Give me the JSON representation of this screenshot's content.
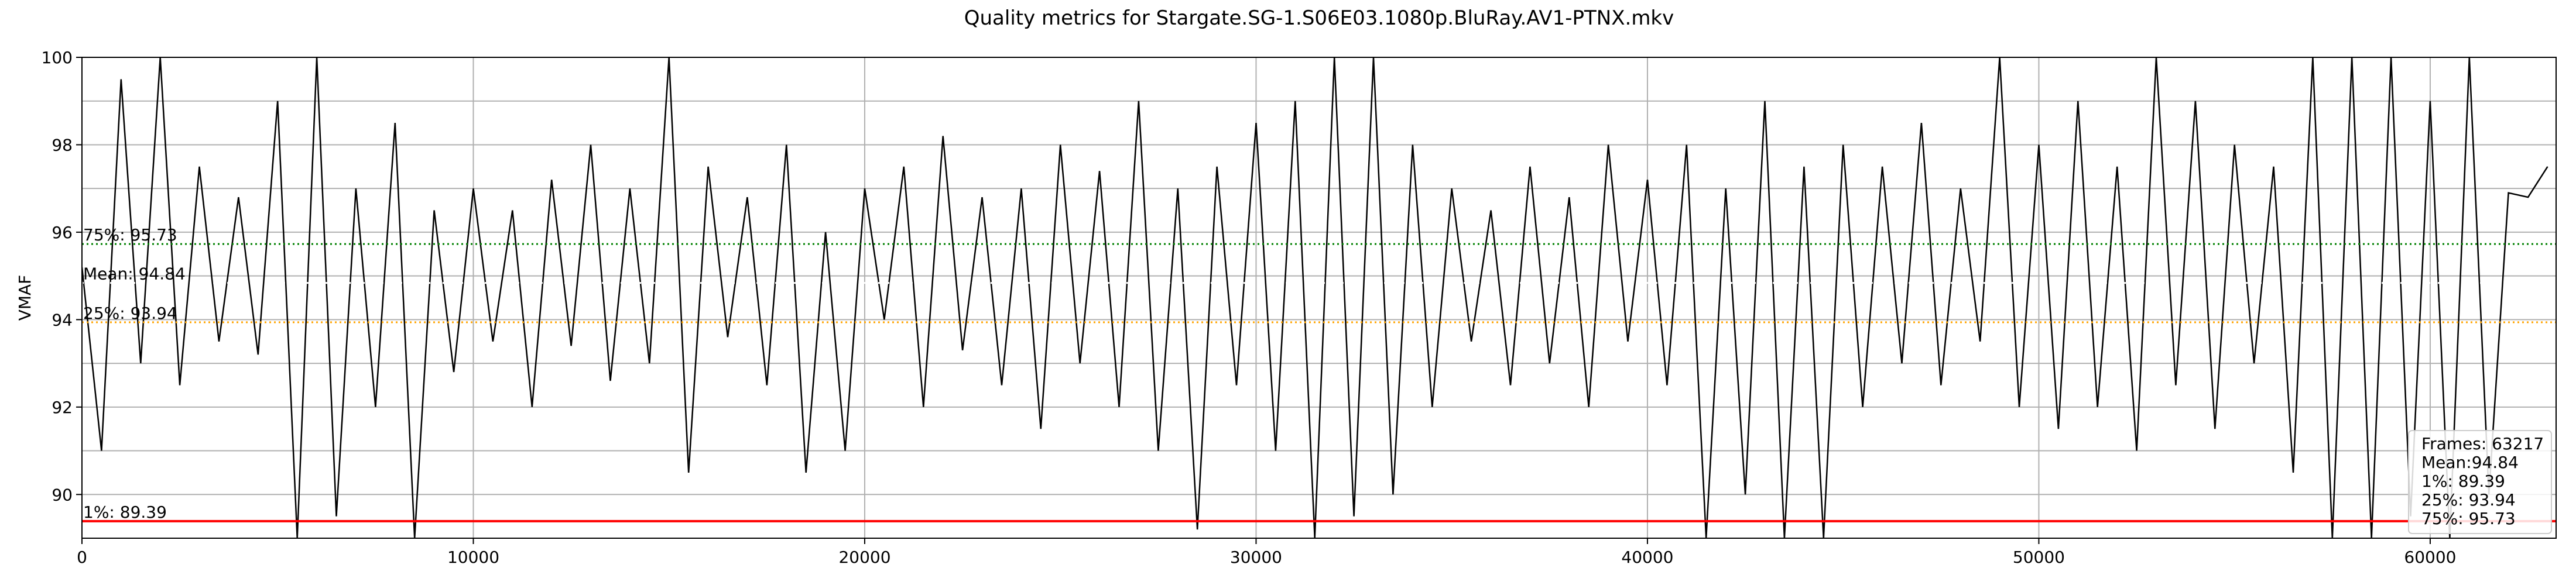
{
  "chart_data": {
    "type": "line",
    "title": "Quality metrics for Stargate.SG-1.S06E03.1080p.BluRay.AV1-PTNX.mkv",
    "y_label": "VMAF",
    "color": "#000000",
    "x": [
      0,
      500,
      1000,
      1500,
      2000,
      2500,
      3000,
      3500,
      4000,
      4500,
      5000,
      5500,
      6000,
      6500,
      7000,
      7500,
      8000,
      8500,
      9000,
      9500,
      10000,
      10500,
      11000,
      11500,
      12000,
      12500,
      13000,
      13500,
      14000,
      14500,
      15000,
      15500,
      16000,
      16500,
      17000,
      17500,
      18000,
      18500,
      19000,
      19500,
      20000,
      20500,
      21000,
      21500,
      22000,
      22500,
      23000,
      23500,
      24000,
      24500,
      25000,
      25500,
      26000,
      26500,
      27000,
      27500,
      28000,
      28500,
      29000,
      29500,
      30000,
      30500,
      31000,
      31500,
      32000,
      32500,
      33000,
      33500,
      34000,
      34500,
      35000,
      35500,
      36000,
      36500,
      37000,
      37500,
      38000,
      38500,
      39000,
      39500,
      40000,
      40500,
      41000,
      41500,
      42000,
      42500,
      43000,
      43500,
      44000,
      44500,
      45000,
      45500,
      46000,
      46500,
      47000,
      47500,
      48000,
      48500,
      49000,
      49500,
      50000,
      50500,
      51000,
      51500,
      52000,
      52500,
      53000,
      53500,
      54000,
      54500,
      55000,
      55500,
      56000,
      56500,
      57000,
      57500,
      58000,
      58500,
      59000,
      59500,
      60000,
      60500,
      61000,
      61500,
      62000,
      62500,
      63000
    ],
    "values": [
      95.2,
      91.0,
      99.5,
      93.0,
      100,
      92.5,
      97.5,
      93.5,
      96.8,
      93.2,
      99.0,
      89.0,
      100,
      89.5,
      97.0,
      92.0,
      98.5,
      89.0,
      96.5,
      92.8,
      97.0,
      93.5,
      96.5,
      92.0,
      97.2,
      93.4,
      98.0,
      92.6,
      97.0,
      93.0,
      100,
      90.5,
      97.5,
      93.6,
      96.8,
      92.5,
      98.0,
      90.5,
      96.0,
      91.0,
      97.0,
      94.0,
      97.5,
      92.0,
      98.2,
      93.3,
      96.8,
      92.5,
      97.0,
      91.5,
      98.0,
      93.0,
      97.4,
      92.0,
      99.0,
      91.0,
      97.0,
      89.2,
      97.5,
      92.5,
      98.5,
      91.0,
      99.0,
      89.0,
      100,
      89.5,
      100,
      90.0,
      98.0,
      92.0,
      97.0,
      93.5,
      96.5,
      92.5,
      97.5,
      93.0,
      96.8,
      92.0,
      98.0,
      93.5,
      97.2,
      92.5,
      98.0,
      89.0,
      97.0,
      90.0,
      99.0,
      89.0,
      97.5,
      89.0,
      98.0,
      92.0,
      97.5,
      93.0,
      98.5,
      92.5,
      97.0,
      93.5,
      100,
      92.0,
      98.0,
      91.5,
      99.0,
      92.0,
      97.5,
      91.0,
      100,
      92.5,
      99.0,
      91.5,
      98.0,
      93.0,
      97.5,
      90.5,
      100,
      89.0,
      100,
      89.0,
      100,
      89.5,
      99.0,
      89.0,
      100,
      90.0,
      96.9,
      96.8,
      97.5
    ],
    "xlim": [
      0,
      63217
    ],
    "ylim": [
      89,
      100
    ],
    "xticks": [
      0,
      10000,
      20000,
      30000,
      40000,
      50000,
      60000
    ],
    "yticks": [
      90,
      92,
      94,
      96,
      98,
      100
    ],
    "minor_yticks": [
      89,
      91,
      93,
      95,
      97,
      99
    ],
    "grid": true,
    "hlines": [
      {
        "label": "1%: 89.39",
        "value": 89.39,
        "color": "#ff0000",
        "style": "solid"
      },
      {
        "label": "25%: 93.94",
        "value": 93.94,
        "color": "#ffa500",
        "style": "dotted"
      },
      {
        "label": "Mean: 94.84",
        "value": 94.84,
        "color": "#ffffff",
        "style": "dotted"
      },
      {
        "label": "75%: 95.73",
        "value": 95.73,
        "color": "#008000",
        "style": "dotted"
      }
    ],
    "stats_box": [
      "Frames: 63217",
      "Mean:94.84",
      "1%: 89.39",
      "25%: 93.94",
      "75%: 95.73"
    ],
    "legend_position": "lower right"
  }
}
